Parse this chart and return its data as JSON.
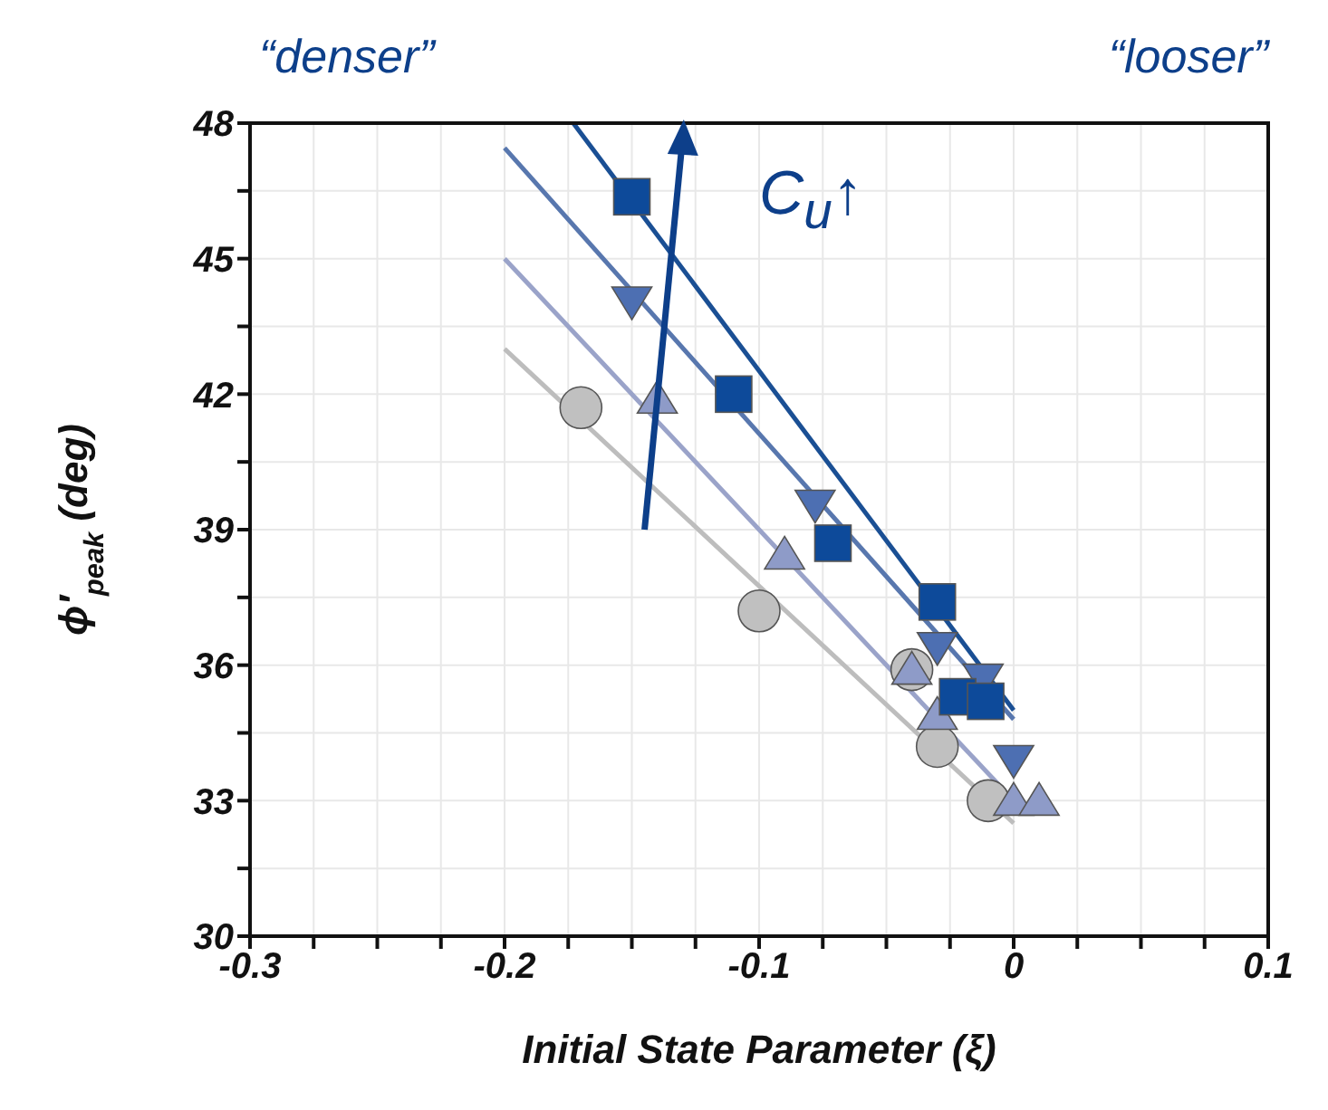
{
  "chart_data": {
    "type": "scatter",
    "xlabel": "Initial State Parameter (ξ)",
    "ylabel": "ϕ′$_{peak}$ (deg)",
    "xlim": [
      -0.3,
      0.1
    ],
    "ylim": [
      30,
      48
    ],
    "xticks": [
      -0.3,
      {
        "value": -0.275,
        "label": null
      },
      {
        "value": -0.25,
        "label": null
      },
      {
        "value": -0.225,
        "label": null
      },
      -0.2,
      {
        "value": -0.175,
        "label": null
      },
      {
        "value": -0.15,
        "label": null
      },
      {
        "value": -0.125,
        "label": null
      },
      -0.1,
      {
        "value": -0.075,
        "label": null
      },
      {
        "value": -0.05,
        "label": null
      },
      {
        "value": -0.025,
        "label": null
      },
      0,
      {
        "value": 0.025,
        "label": null
      },
      {
        "value": 0.05,
        "label": null
      },
      {
        "value": 0.075,
        "label": null
      },
      0.1
    ],
    "yticks": [
      30,
      {
        "value": 31.5,
        "label": null
      },
      33,
      {
        "value": 34.5,
        "label": null
      },
      36,
      {
        "value": 37.5,
        "label": null
      },
      39,
      {
        "value": 40.5,
        "label": null
      },
      42,
      {
        "value": 43.5,
        "label": null
      },
      45,
      {
        "value": 46.5,
        "label": null
      },
      48
    ],
    "grid": true,
    "annotations": [
      "“denser”",
      "“looser”",
      "C$_{u}$↑"
    ],
    "series": [
      {
        "type": "line",
        "color": "#bdbdbd",
        "marker": "none",
        "x": [
          -0.2,
          0
        ],
        "values": [
          43,
          32.5
        ]
      },
      {
        "type": "line",
        "color": "#9aa3c9",
        "marker": "none",
        "x": [
          -0.2,
          0
        ],
        "values": [
          45,
          33
        ]
      },
      {
        "type": "line",
        "color": "#5877ae",
        "marker": "none",
        "x": [
          -0.2,
          0
        ],
        "values": [
          47.45,
          34.8
        ]
      },
      {
        "type": "line",
        "color": "#1a4f94",
        "marker": "none",
        "x": [
          -0.173,
          0
        ],
        "values": [
          48,
          35
        ]
      },
      {
        "type": "scatter",
        "color": "#c0c0c0",
        "marker": "circle",
        "x": [
          -0.17,
          -0.1,
          -0.04,
          -0.03,
          -0.01
        ],
        "values": [
          41.7,
          37.2,
          35.9,
          34.2,
          33
        ]
      },
      {
        "type": "scatter",
        "color": "#8e9bc8",
        "marker": "triangle",
        "x": [
          -0.14,
          -0.09,
          -0.04,
          -0.03,
          0,
          0.01
        ],
        "values": [
          41.9,
          38.45,
          35.9,
          34.9,
          33,
          33
        ]
      },
      {
        "type": "scatter",
        "color": "#4d6fb2",
        "marker": "triangle-down",
        "x": [
          -0.15,
          -0.078,
          -0.03,
          -0.012,
          0
        ],
        "values": [
          44.05,
          39.55,
          36.4,
          35.7,
          33.9
        ]
      },
      {
        "type": "scatter",
        "color": "#0d4a9a",
        "marker": "square",
        "x": [
          -0.15,
          -0.11,
          -0.071,
          -0.03,
          -0.022,
          -0.011
        ],
        "values": [
          46.37,
          42,
          38.7,
          37.4,
          35.3,
          35.2
        ]
      }
    ]
  }
}
